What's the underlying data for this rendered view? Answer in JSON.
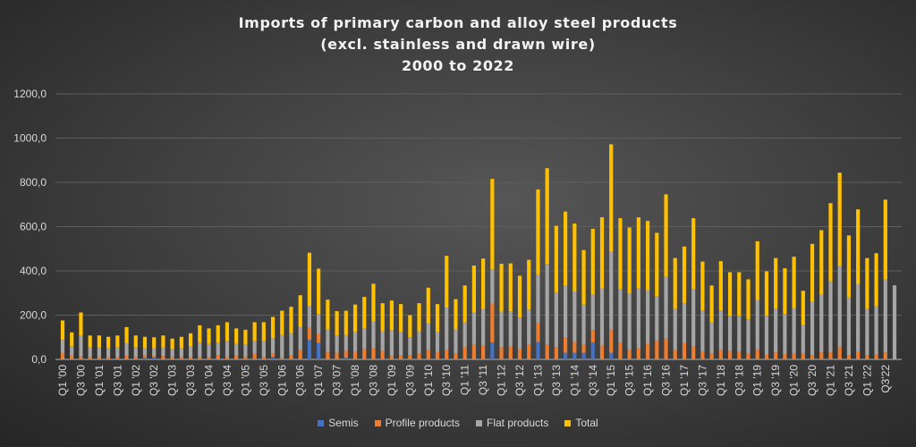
{
  "chart_data": {
    "type": "bar",
    "stacked": true,
    "title": [
      "Imports of primary carbon and alloy steel products",
      "(excl. stainless and drawn wire)",
      "2000 to 2022"
    ],
    "xlabel": "",
    "ylabel": "",
    "ylim": [
      0,
      1200
    ],
    "yticks": [
      "0,0",
      "200,0",
      "400,0",
      "600,0",
      "800,0",
      "1000,0",
      "1200,0"
    ],
    "grid": true,
    "legend_position": "bottom",
    "tick_labels": [
      "Q1 '00",
      "Q3 '00",
      "Q1 '01",
      "Q3 '01",
      "Q1 '02",
      "Q3 '02",
      "Q1 '03",
      "Q3 '03",
      "Q1 '04",
      "Q3 '04",
      "Q1 '05",
      "Q3 '05",
      "Q1 '06",
      "Q3 '06",
      "Q1 '07",
      "Q3 '07",
      "Q1 '08",
      "Q3 '08",
      "Q1 '09",
      "Q3 '09",
      "Q1 '10",
      "Q3 '10",
      "Q1 '11",
      "Q3 '11",
      "Q1 '12",
      "Q3 '12",
      "Q1 '13",
      "Q3 '13",
      "Q1 '14",
      "Q3 '14",
      "Q1 '15",
      "Q3 '15",
      "Q1 '16",
      "Q3 '16",
      "Q1 '17",
      "Q3 '17",
      "Q1 '18",
      "Q3 '18",
      "Q1 '19",
      "Q3 '19",
      "Q1 '20",
      "Q3 '20",
      "Q1 '21",
      "Q3 '21",
      "Q1 '22",
      "Q3'22"
    ],
    "quarters_count": 92,
    "series": [
      {
        "name": "Semis",
        "color": "#4472c4",
        "values": [
          0,
          0,
          0,
          0,
          0,
          0,
          0,
          0,
          0,
          7,
          9,
          0,
          0,
          0,
          0,
          0,
          0,
          0,
          0,
          0,
          0,
          0,
          0,
          12,
          0,
          0,
          0,
          88,
          75,
          0,
          0,
          7,
          0,
          0,
          0,
          0,
          0,
          0,
          0,
          0,
          0,
          0,
          0,
          0,
          0,
          0,
          0,
          77,
          0,
          0,
          0,
          0,
          79,
          0,
          0,
          30,
          30,
          30,
          77,
          0,
          30,
          0,
          0,
          0,
          0,
          0,
          0,
          0,
          0,
          0,
          0,
          0,
          0,
          0,
          0,
          0,
          0,
          0,
          0,
          0,
          0,
          0,
          0,
          0,
          0,
          0,
          0,
          0,
          0,
          0,
          0,
          0
        ]
      },
      {
        "name": "Profile products",
        "color": "#ed7d31",
        "values": [
          30,
          16,
          13,
          9,
          9,
          9,
          12,
          16,
          9,
          12,
          7,
          16,
          9,
          12,
          9,
          12,
          12,
          20,
          9,
          18,
          13,
          26,
          12,
          15,
          7,
          19,
          43,
          55,
          39,
          36,
          30,
          32,
          36,
          47,
          51,
          38,
          15,
          20,
          19,
          28,
          43,
          34,
          43,
          28,
          55,
          67,
          63,
          174,
          55,
          58,
          47,
          67,
          87,
          69,
          55,
          71,
          49,
          35,
          56,
          63,
          105,
          77,
          43,
          51,
          71,
          85,
          94,
          43,
          73,
          59,
          35,
          28,
          42,
          38,
          35,
          27,
          46,
          22,
          32,
          24,
          28,
          27,
          20,
          32,
          32,
          55,
          20,
          34,
          20,
          22,
          31,
          0
        ]
      },
      {
        "name": "Flat products",
        "color": "#a5a5a5",
        "values": [
          58,
          45,
          93,
          45,
          45,
          42,
          42,
          57,
          45,
          32,
          34,
          38,
          38,
          39,
          50,
          65,
          58,
          57,
          75,
          52,
          54,
          58,
          72,
          69,
          103,
          100,
          102,
          98,
          91,
          99,
          79,
          71,
          88,
          94,
          120,
          89,
          118,
          105,
          81,
          99,
          119,
          91,
          191,
          108,
          112,
          145,
          165,
          157,
          161,
          159,
          142,
          158,
          218,
          363,
          247,
          233,
          228,
          182,
          162,
          258,
          351,
          242,
          255,
          270,
          242,
          201,
          279,
          186,
          182,
          260,
          186,
          139,
          180,
          159,
          162,
          154,
          221,
          177,
          197,
          182,
          204,
          128,
          241,
          260,
          321,
          367,
          260,
          305,
          209,
          218,
          330,
          335
        ]
      },
      {
        "name": "Total",
        "color": "#ffc000",
        "values": [
          88,
          61,
          106,
          54,
          54,
          51,
          54,
          73,
          54,
          51,
          50,
          54,
          47,
          51,
          59,
          77,
          70,
          77,
          84,
          70,
          67,
          84,
          84,
          96,
          110,
          119,
          145,
          241,
          205,
          135,
          109,
          110,
          124,
          141,
          171,
          127,
          133,
          125,
          100,
          127,
          162,
          125,
          234,
          136,
          167,
          212,
          228,
          408,
          216,
          217,
          189,
          225,
          384,
          432,
          302,
          334,
          307,
          247,
          295,
          321,
          486,
          319,
          298,
          321,
          313,
          286,
          373,
          229,
          255,
          319,
          221,
          167,
          222,
          197,
          197,
          181,
          267,
          199,
          229,
          206,
          232,
          155,
          261,
          292,
          353,
          422,
          280,
          339,
          229,
          240,
          361,
          null
        ]
      }
    ]
  }
}
